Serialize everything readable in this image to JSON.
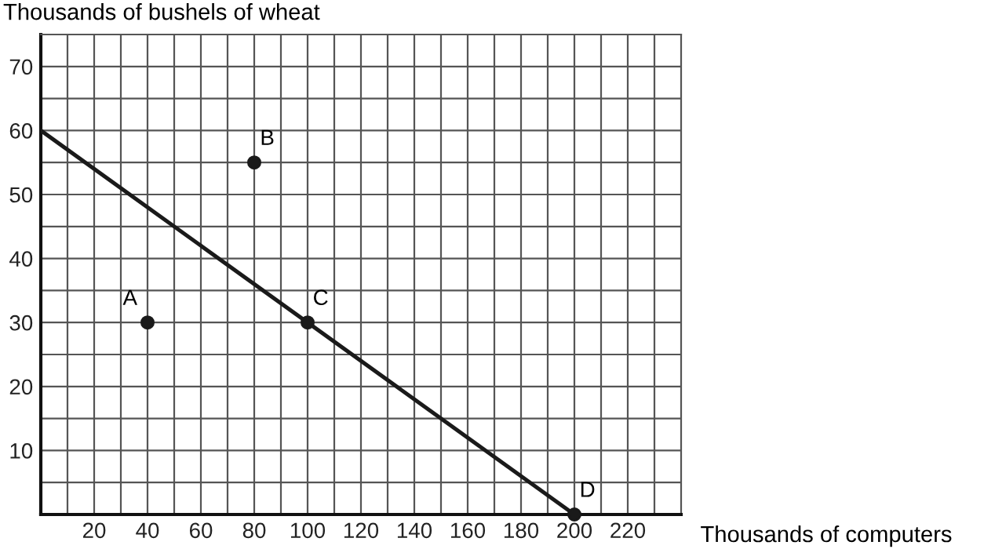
{
  "chart_data": {
    "type": "scatter",
    "xlabel": "Thousands of computers",
    "ylabel": "Thousands of bushels of wheat",
    "xlim": [
      0,
      240
    ],
    "ylim": [
      0,
      75
    ],
    "xticks": [
      {
        "value": 10,
        "label": null
      },
      20,
      {
        "value": 30,
        "label": null
      },
      40,
      {
        "value": 50,
        "label": null
      },
      60,
      {
        "value": 70,
        "label": null
      },
      80,
      {
        "value": 90,
        "label": null
      },
      100,
      {
        "value": 110,
        "label": null
      },
      120,
      {
        "value": 130,
        "label": null
      },
      140,
      {
        "value": 150,
        "label": null
      },
      160,
      {
        "value": 170,
        "label": null
      },
      180,
      {
        "value": 190,
        "label": null
      },
      200,
      {
        "value": 210,
        "label": null
      },
      220,
      {
        "value": 230,
        "label": null
      }
    ],
    "yticks": [
      {
        "value": 5,
        "label": null
      },
      10,
      {
        "value": 15,
        "label": null
      },
      20,
      {
        "value": 25,
        "label": null
      },
      30,
      {
        "value": 35,
        "label": null
      },
      40,
      {
        "value": 45,
        "label": null
      },
      50,
      {
        "value": 55,
        "label": null
      },
      60,
      {
        "value": 65,
        "label": null
      },
      70
    ],
    "grid": true,
    "series": [
      {
        "type": "line",
        "color": "#1a1a1a",
        "x": [
          0,
          200
        ],
        "values": [
          60,
          0
        ]
      },
      {
        "color": "#1a1a1a",
        "marker": "circle",
        "x": [
          40,
          80,
          100,
          200
        ],
        "values": [
          30,
          55,
          30,
          0
        ]
      }
    ],
    "annotations": [
      {
        "text": "A",
        "x": 40,
        "y": 30
      },
      {
        "text": "B",
        "x": 80,
        "y": 55
      },
      {
        "text": "C",
        "x": 100,
        "y": 30
      },
      {
        "text": "D",
        "x": 200,
        "y": 0
      }
    ]
  }
}
